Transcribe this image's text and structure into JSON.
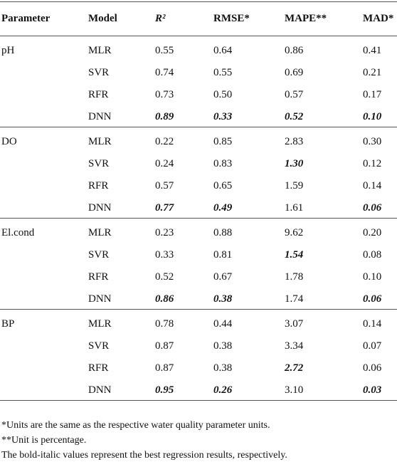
{
  "table": {
    "header": [
      "Parameter",
      "Model",
      "R²",
      "RMSE*",
      "MAPE**",
      "MAD*"
    ],
    "groups": [
      {
        "parameter": "pH",
        "rows": [
          {
            "model": "MLR",
            "values": [
              "0.55",
              "0.64",
              "0.86",
              "0.41"
            ],
            "best": [
              false,
              false,
              false,
              false
            ]
          },
          {
            "model": "SVR",
            "values": [
              "0.74",
              "0.55",
              "0.69",
              "0.21"
            ],
            "best": [
              false,
              false,
              false,
              false
            ]
          },
          {
            "model": "RFR",
            "values": [
              "0.73",
              "0.50",
              "0.57",
              "0.17"
            ],
            "best": [
              false,
              false,
              false,
              false
            ]
          },
          {
            "model": "DNN",
            "values": [
              "0.89",
              "0.33",
              "0.52",
              "0.10"
            ],
            "best": [
              true,
              true,
              true,
              true
            ]
          }
        ]
      },
      {
        "parameter": "DO",
        "rows": [
          {
            "model": "MLR",
            "values": [
              "0.22",
              "0.85",
              "2.83",
              "0.30"
            ],
            "best": [
              false,
              false,
              false,
              false
            ]
          },
          {
            "model": "SVR",
            "values": [
              "0.24",
              "0.83",
              "1.30",
              "0.12"
            ],
            "best": [
              false,
              false,
              true,
              false
            ]
          },
          {
            "model": "RFR",
            "values": [
              "0.57",
              "0.65",
              "1.59",
              "0.14"
            ],
            "best": [
              false,
              false,
              false,
              false
            ]
          },
          {
            "model": "DNN",
            "values": [
              "0.77",
              "0.49",
              "1.61",
              "0.06"
            ],
            "best": [
              true,
              true,
              false,
              true
            ]
          }
        ]
      },
      {
        "parameter": "El.cond",
        "rows": [
          {
            "model": "MLR",
            "values": [
              "0.23",
              "0.88",
              "9.62",
              "0.20"
            ],
            "best": [
              false,
              false,
              false,
              false
            ]
          },
          {
            "model": "SVR",
            "values": [
              "0.33",
              "0.81",
              "1.54",
              "0.08"
            ],
            "best": [
              false,
              false,
              true,
              false
            ]
          },
          {
            "model": "RFR",
            "values": [
              "0.52",
              "0.67",
              "1.78",
              "0.10"
            ],
            "best": [
              false,
              false,
              false,
              false
            ]
          },
          {
            "model": "DNN",
            "values": [
              "0.86",
              "0.38",
              "1.74",
              "0.06"
            ],
            "best": [
              true,
              true,
              false,
              true
            ]
          }
        ]
      },
      {
        "parameter": "BP",
        "rows": [
          {
            "model": "MLR",
            "values": [
              "0.78",
              "0.44",
              "3.07",
              "0.14"
            ],
            "best": [
              false,
              false,
              false,
              false
            ]
          },
          {
            "model": "SVR",
            "values": [
              "0.87",
              "0.38",
              "3.34",
              "0.07"
            ],
            "best": [
              false,
              false,
              false,
              false
            ]
          },
          {
            "model": "RFR",
            "values": [
              "0.87",
              "0.38",
              "2.72",
              "0.06"
            ],
            "best": [
              false,
              false,
              true,
              false
            ]
          },
          {
            "model": "DNN",
            "values": [
              "0.95",
              "0.26",
              "3.10",
              "0.03"
            ],
            "best": [
              true,
              true,
              false,
              true
            ]
          }
        ]
      }
    ],
    "footnotes": [
      "*Units are the same as the respective water quality parameter units.",
      "**Unit is percentage.",
      "The bold-italic values represent the best regression results, respectively."
    ]
  }
}
